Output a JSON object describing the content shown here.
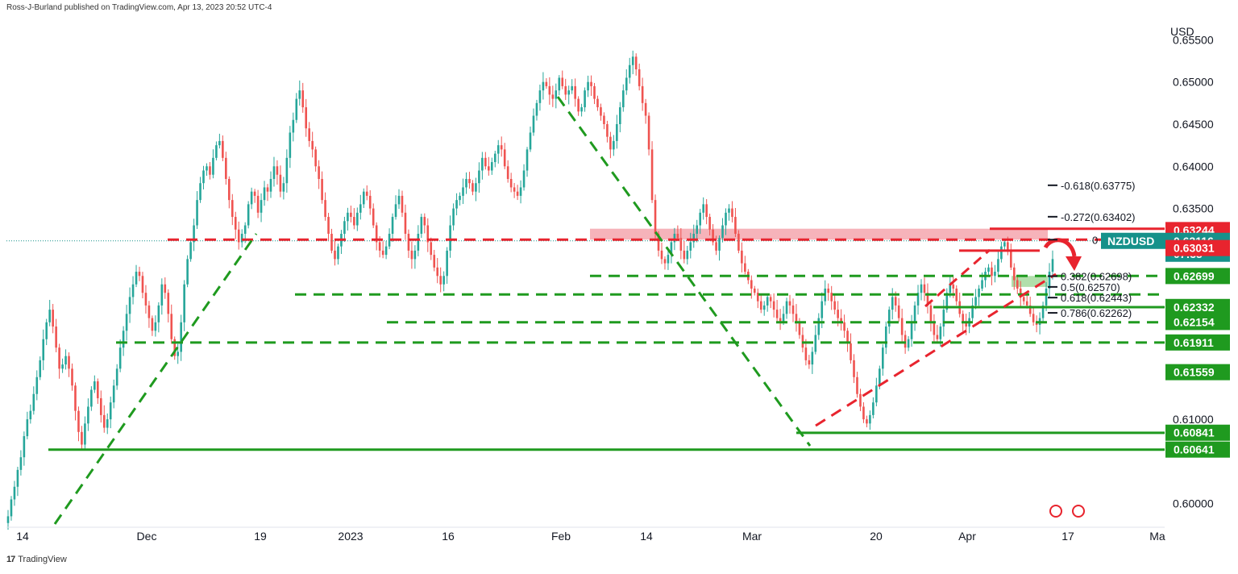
{
  "header": {
    "published": "Ross-J-Burland published on TradingView.com, Apr 13, 2023 20:52 UTC-4"
  },
  "footer": {
    "brand": "TradingView"
  },
  "colors": {
    "up": "#26a69a",
    "down": "#ef5350",
    "support": "#1f9a1f",
    "resistance": "#e8242e",
    "symbol_tag": "#16918a"
  },
  "chart_data": {
    "type": "candlestick",
    "symbol": "NZDUSD",
    "currency": "USD",
    "timeframe_countdown": "07:35",
    "ylim": [
      0.5972,
      0.658
    ],
    "y_ticks": [
      0.6,
      0.61,
      0.635,
      0.64,
      0.645,
      0.65,
      0.655
    ],
    "y_tick_labels": [
      "0.60000",
      "0.61000",
      "0.63500",
      "0.64000",
      "0.64500",
      "0.65000",
      "0.65500"
    ],
    "x_tick_labels": [
      "14",
      "Dec",
      "19",
      "2023",
      "16",
      "Feb",
      "14",
      "Mar",
      "20",
      "Apr",
      "17",
      "Ma"
    ],
    "close_series": [
      0.5985,
      0.6005,
      0.602,
      0.604,
      0.6055,
      0.608,
      0.61,
      0.611,
      0.613,
      0.615,
      0.617,
      0.6195,
      0.6215,
      0.623,
      0.621,
      0.6185,
      0.616,
      0.6165,
      0.6175,
      0.616,
      0.614,
      0.611,
      0.6085,
      0.607,
      0.6095,
      0.6115,
      0.6135,
      0.6145,
      0.6125,
      0.6105,
      0.609,
      0.61,
      0.612,
      0.614,
      0.616,
      0.6185,
      0.6205,
      0.6225,
      0.6245,
      0.626,
      0.6275,
      0.627,
      0.625,
      0.6235,
      0.622,
      0.6205,
      0.6215,
      0.6235,
      0.626,
      0.625,
      0.6225,
      0.6195,
      0.6175,
      0.618,
      0.6215,
      0.626,
      0.629,
      0.631,
      0.633,
      0.636,
      0.638,
      0.6395,
      0.64,
      0.639,
      0.641,
      0.6425,
      0.643,
      0.641,
      0.6385,
      0.636,
      0.634,
      0.6325,
      0.631,
      0.632,
      0.633,
      0.6355,
      0.637,
      0.6365,
      0.6345,
      0.636,
      0.6375,
      0.637,
      0.6385,
      0.64,
      0.639,
      0.637,
      0.638,
      0.641,
      0.644,
      0.6455,
      0.648,
      0.649,
      0.647,
      0.6445,
      0.643,
      0.642,
      0.64,
      0.6385,
      0.636,
      0.634,
      0.632,
      0.63,
      0.629,
      0.6305,
      0.632,
      0.6335,
      0.6345,
      0.634,
      0.633,
      0.6345,
      0.6355,
      0.637,
      0.6365,
      0.635,
      0.633,
      0.631,
      0.63,
      0.6295,
      0.6305,
      0.632,
      0.634,
      0.6355,
      0.6365,
      0.6345,
      0.632,
      0.63,
      0.629,
      0.63,
      0.632,
      0.634,
      0.633,
      0.631,
      0.6295,
      0.628,
      0.627,
      0.626,
      0.627,
      0.63,
      0.633,
      0.635,
      0.636,
      0.6365,
      0.6375,
      0.6385,
      0.638,
      0.637,
      0.638,
      0.6395,
      0.641,
      0.64,
      0.6395,
      0.6405,
      0.6415,
      0.6425,
      0.642,
      0.64,
      0.6385,
      0.6375,
      0.637,
      0.6365,
      0.6375,
      0.6395,
      0.642,
      0.644,
      0.646,
      0.6475,
      0.649,
      0.65,
      0.6495,
      0.6485,
      0.648,
      0.649,
      0.6505,
      0.6495,
      0.6485,
      0.649,
      0.6495,
      0.648,
      0.6465,
      0.647,
      0.649,
      0.65,
      0.6495,
      0.648,
      0.647,
      0.646,
      0.645,
      0.6435,
      0.642,
      0.643,
      0.645,
      0.647,
      0.649,
      0.6505,
      0.652,
      0.653,
      0.6515,
      0.6495,
      0.6475,
      0.646,
      0.642,
      0.636,
      0.632,
      0.63,
      0.629,
      0.6285,
      0.6295,
      0.631,
      0.632,
      0.6315,
      0.63,
      0.629,
      0.63,
      0.631,
      0.632,
      0.633,
      0.6345,
      0.6355,
      0.634,
      0.6325,
      0.631,
      0.63,
      0.6315,
      0.633,
      0.6345,
      0.635,
      0.634,
      0.632,
      0.63,
      0.6285,
      0.6275,
      0.6265,
      0.6255,
      0.625,
      0.624,
      0.623,
      0.6235,
      0.6245,
      0.624,
      0.623,
      0.622,
      0.6215,
      0.6225,
      0.624,
      0.6235,
      0.6225,
      0.6215,
      0.62,
      0.6185,
      0.617,
      0.6165,
      0.618,
      0.62,
      0.622,
      0.624,
      0.6255,
      0.625,
      0.624,
      0.623,
      0.622,
      0.6215,
      0.6205,
      0.619,
      0.617,
      0.615,
      0.613,
      0.6115,
      0.61,
      0.6095,
      0.6105,
      0.612,
      0.614,
      0.616,
      0.6185,
      0.621,
      0.623,
      0.6245,
      0.6235,
      0.622,
      0.62,
      0.6185,
      0.6195,
      0.6215,
      0.6235,
      0.625,
      0.626,
      0.625,
      0.6235,
      0.6215,
      0.62,
      0.6195,
      0.621,
      0.623,
      0.625,
      0.626,
      0.6255,
      0.624,
      0.6225,
      0.6215,
      0.621,
      0.622,
      0.6235,
      0.6245,
      0.6255,
      0.6265,
      0.6275,
      0.628,
      0.627,
      0.6275,
      0.629,
      0.6305,
      0.631,
      0.63,
      0.628,
      0.6265,
      0.6255,
      0.6245,
      0.624,
      0.6235,
      0.6225,
      0.6215,
      0.6212,
      0.622,
      0.6235,
      0.6255,
      0.6275,
      0.629
    ],
    "horizontal_levels": [
      {
        "price": 0.6313,
        "style": "dashed",
        "color": "#e8242e"
      },
      {
        "price": 0.627,
        "style": "dashed",
        "color": "#1f9a1f"
      },
      {
        "price": 0.6248,
        "style": "dashed",
        "color": "#1f9a1f"
      },
      {
        "price": 0.6233,
        "style": "solid",
        "color": "#1f9a1f"
      },
      {
        "price": 0.6215,
        "style": "dashed",
        "color": "#1f9a1f"
      },
      {
        "price": 0.6191,
        "style": "dashed",
        "color": "#1f9a1f"
      },
      {
        "price": 0.6084,
        "style": "solid",
        "color": "#1f9a1f"
      },
      {
        "price": 0.6064,
        "style": "solid",
        "color": "#1f9a1f"
      }
    ],
    "zones": [
      {
        "from": 0.6313,
        "to": 0.6326,
        "color": "#f4a6ae"
      },
      {
        "from": 0.6257,
        "to": 0.627,
        "color": "#a9dca2"
      }
    ],
    "fib_levels": [
      {
        "label": "-0.618(0.63775)",
        "price": 0.63775
      },
      {
        "label": "-0.272(0.63402)",
        "price": 0.63402
      },
      {
        "label": "0",
        "price": 0.6313
      },
      {
        "label": "0.382(0.62698)",
        "price": 0.62698
      },
      {
        "label": "0.5(0.62570)",
        "price": 0.6257
      },
      {
        "label": "0.618(0.62443)",
        "price": 0.62443
      },
      {
        "label": "0.786(0.62262)",
        "price": 0.62262
      }
    ],
    "price_tags": [
      {
        "label": "0.63244",
        "price": 0.63244,
        "color": "#e8242e"
      },
      {
        "label": "0.63116",
        "price": 0.63116,
        "color": "#16918a",
        "symbol": true
      },
      {
        "label": "0.63031",
        "price": 0.63031,
        "color": "#e8242e"
      },
      {
        "label": "0.62699",
        "price": 0.62699,
        "color": "#1f9a1f"
      },
      {
        "label": "0.62332",
        "price": 0.62332,
        "color": "#1f9a1f"
      },
      {
        "label": "0.62154",
        "price": 0.62154,
        "color": "#1f9a1f"
      },
      {
        "label": "0.61911",
        "price": 0.61911,
        "color": "#1f9a1f"
      },
      {
        "label": "0.61559",
        "price": 0.61559,
        "color": "#1f9a1f"
      },
      {
        "label": "0.60841",
        "price": 0.60841,
        "color": "#1f9a1f"
      },
      {
        "label": "0.60641",
        "price": 0.60641,
        "color": "#1f9a1f"
      }
    ]
  }
}
